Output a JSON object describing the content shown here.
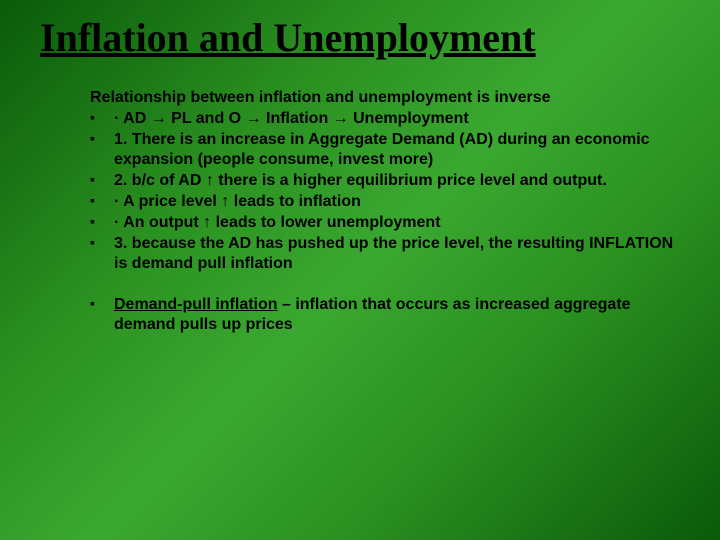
{
  "slide": {
    "title": "Inflation and Unemployment",
    "intro": "Relationship between inflation and unemployment is inverse",
    "bullets1": [
      "·  AD → PL and O → Inflation → Unemployment",
      "1.     There is an increase in Aggregate Demand (AD) during an economic expansion (people consume, invest more)",
      "2.     b/c of AD ↑ there is a higher equilibrium price level and output.",
      "·        A price level ↑ leads to inflation",
      "·        An output ↑ leads to lower unemployment",
      "3.     because the AD has pushed up the price level, the resulting INFLATION is demand pull inflation"
    ],
    "definition_term": "Demand-pull inflation",
    "definition_rest": " – inflation that occurs as increased aggregate demand pulls up prices"
  },
  "style": {
    "title_color": "#000000",
    "title_fontsize": 40,
    "body_fontsize": 16,
    "text_color": "#000000",
    "background_gradient": [
      "#0a5a0a",
      "#2a9020",
      "#3aa830",
      "#2a9020",
      "#0a5a0a"
    ],
    "font_family_title": "Georgia",
    "font_family_body": "Arial",
    "bullet_marker": "▪"
  }
}
